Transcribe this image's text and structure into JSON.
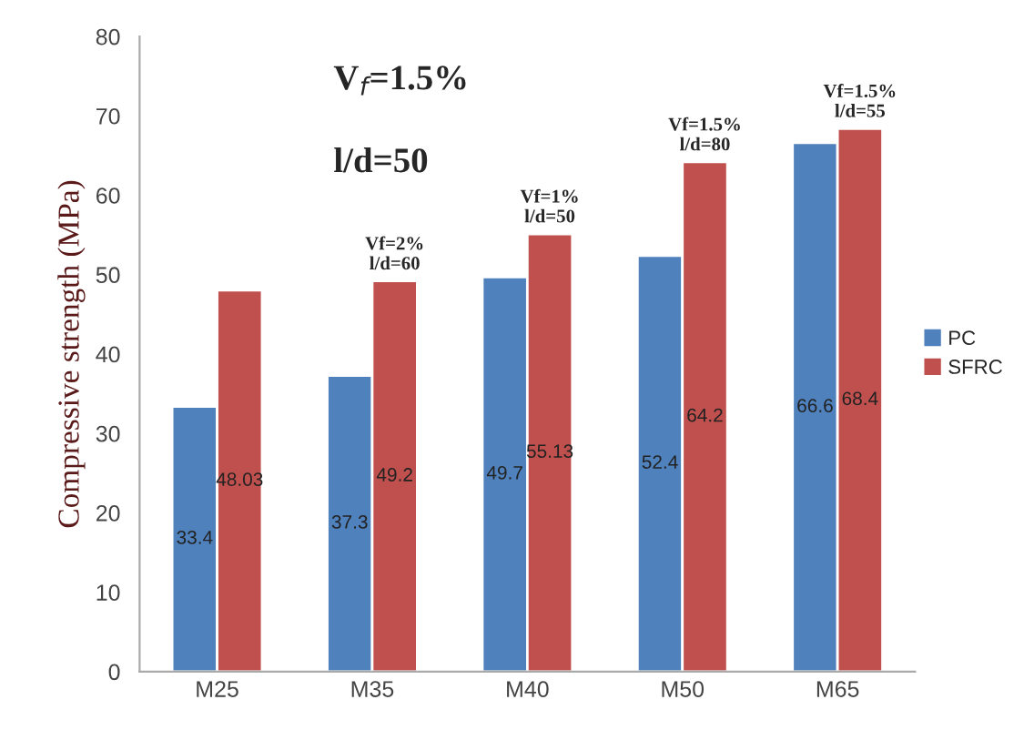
{
  "chart_data": {
    "type": "bar",
    "ylabel": "Compressive strength (MPa)",
    "categories": [
      "M25",
      "M35",
      "M40",
      "M50",
      "M65"
    ],
    "series": [
      {
        "name": "PC",
        "color": "#4f81bd",
        "values": [
          33.4,
          37.3,
          49.7,
          52.4,
          66.6
        ]
      },
      {
        "name": "SFRC",
        "color": "#c0504d",
        "values": [
          48.03,
          49.2,
          55.13,
          64.2,
          68.4
        ]
      }
    ],
    "ylim": [
      0,
      80
    ],
    "yticks": [
      0,
      10,
      20,
      30,
      40,
      50,
      60,
      70,
      80
    ],
    "data_labels": true,
    "grid": false,
    "legend": "right",
    "annotations": [
      "V$_{f}$=1.5%",
      "l/d=50",
      {
        "text": "Vf=2%\nl/d=60",
        "x": "M35",
        "y": 49.2
      },
      {
        "text": "Vf=1%\nl/d=50",
        "x": "M40",
        "y": 55.13
      },
      {
        "text": "Vf=1.5%\nl/d=80",
        "x": "M50",
        "y": 64.2
      },
      {
        "text": "Vf=1.5%\nl/d=55",
        "x": "M65",
        "y": 68.4
      }
    ]
  }
}
